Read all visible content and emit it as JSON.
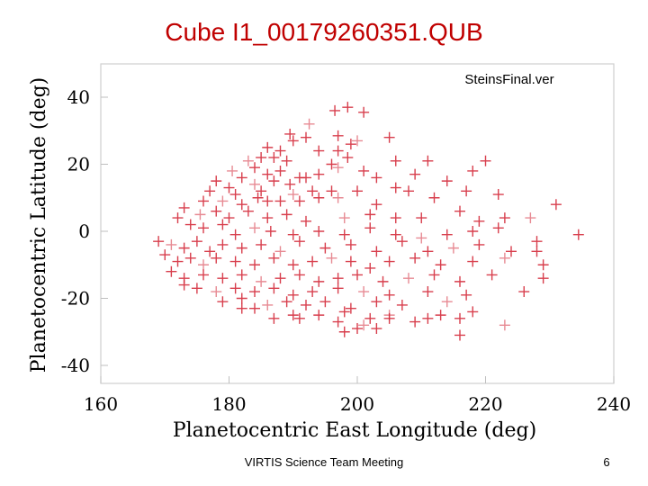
{
  "slide": {
    "title": "Cube I1_00179260351.QUB",
    "footer": "VIRTIS Science Team Meeting",
    "page_number": "6"
  },
  "chart_data": {
    "type": "scatter",
    "annotation": "SteinsFinal.ver",
    "xlabel": "Planetocentric East Longitude (deg)",
    "ylabel": "Planetocentric Latitude (deg)",
    "xlim": [
      160,
      240
    ],
    "ylim": [
      -45,
      50
    ],
    "xticks": [
      160,
      180,
      200,
      220,
      240
    ],
    "yticks": [
      -40,
      -20,
      0,
      20,
      40
    ],
    "marker": "plus",
    "color": "#d42a3a",
    "grid": false,
    "points": [
      [
        196.5,
        36
      ],
      [
        198.5,
        37
      ],
      [
        201,
        35.5
      ],
      [
        192.5,
        32
      ],
      [
        205,
        28
      ],
      [
        189.5,
        29
      ],
      [
        190,
        27
      ],
      [
        192,
        28
      ],
      [
        197,
        28.5
      ],
      [
        199,
        26
      ],
      [
        200,
        27
      ],
      [
        186,
        25
      ],
      [
        188,
        24
      ],
      [
        194,
        24
      ],
      [
        197,
        24
      ],
      [
        185,
        22
      ],
      [
        187,
        22
      ],
      [
        183,
        21
      ],
      [
        189,
        21
      ],
      [
        211,
        21
      ],
      [
        196,
        20
      ],
      [
        198.5,
        22
      ],
      [
        206,
        21
      ],
      [
        220,
        21
      ],
      [
        180.5,
        18
      ],
      [
        182,
        16
      ],
      [
        184,
        19
      ],
      [
        186,
        17
      ],
      [
        188,
        18
      ],
      [
        191,
        16
      ],
      [
        194,
        17
      ],
      [
        197,
        19
      ],
      [
        201,
        18
      ],
      [
        203,
        16
      ],
      [
        209,
        17
      ],
      [
        218,
        18
      ],
      [
        178,
        15
      ],
      [
        180,
        13
      ],
      [
        184,
        14
      ],
      [
        187,
        15
      ],
      [
        189.5,
        14
      ],
      [
        192,
        16
      ],
      [
        177,
        12
      ],
      [
        181,
        11
      ],
      [
        185,
        12
      ],
      [
        190,
        11
      ],
      [
        193,
        12
      ],
      [
        196,
        12
      ],
      [
        200,
        12
      ],
      [
        206,
        13
      ],
      [
        214,
        15
      ],
      [
        176,
        9
      ],
      [
        179,
        9
      ],
      [
        182,
        8
      ],
      [
        184.5,
        10
      ],
      [
        186,
        9
      ],
      [
        188,
        9
      ],
      [
        191,
        9
      ],
      [
        194,
        10
      ],
      [
        197,
        10
      ],
      [
        203,
        8
      ],
      [
        208,
        12
      ],
      [
        212,
        10
      ],
      [
        217,
        12
      ],
      [
        222,
        11
      ],
      [
        173,
        7
      ],
      [
        175.5,
        5
      ],
      [
        178,
        6
      ],
      [
        180,
        4
      ],
      [
        183,
        6
      ],
      [
        186,
        4
      ],
      [
        189,
        5
      ],
      [
        192,
        3
      ],
      [
        198,
        4
      ],
      [
        202,
        5
      ],
      [
        206,
        4
      ],
      [
        210,
        4
      ],
      [
        216,
        6
      ],
      [
        219,
        3
      ],
      [
        223,
        4
      ],
      [
        227,
        4
      ],
      [
        231,
        8
      ],
      [
        172,
        4
      ],
      [
        174,
        2
      ],
      [
        176,
        1
      ],
      [
        179,
        2
      ],
      [
        181,
        -1
      ],
      [
        184,
        1
      ],
      [
        186.5,
        0
      ],
      [
        190,
        -1
      ],
      [
        194,
        0
      ],
      [
        198,
        -1
      ],
      [
        202,
        1
      ],
      [
        206,
        -1
      ],
      [
        210,
        -2
      ],
      [
        214,
        -1
      ],
      [
        218,
        0
      ],
      [
        222,
        1
      ],
      [
        228,
        -3
      ],
      [
        234.5,
        -1
      ],
      [
        169,
        -3
      ],
      [
        171,
        -4
      ],
      [
        173,
        -5
      ],
      [
        175,
        -3
      ],
      [
        177,
        -6
      ],
      [
        179,
        -4
      ],
      [
        182,
        -5
      ],
      [
        185,
        -4
      ],
      [
        188,
        -6
      ],
      [
        191,
        -3
      ],
      [
        195,
        -5
      ],
      [
        199,
        -4
      ],
      [
        203,
        -6
      ],
      [
        207,
        -3
      ],
      [
        211,
        -6
      ],
      [
        215,
        -5
      ],
      [
        219,
        -4
      ],
      [
        224,
        -6
      ],
      [
        228,
        -6
      ],
      [
        170,
        -7
      ],
      [
        172,
        -9
      ],
      [
        174,
        -8
      ],
      [
        176,
        -10
      ],
      [
        178,
        -8
      ],
      [
        181,
        -9
      ],
      [
        184,
        -10
      ],
      [
        187,
        -8
      ],
      [
        190,
        -10
      ],
      [
        193,
        -9
      ],
      [
        196,
        -8
      ],
      [
        199,
        -9
      ],
      [
        202,
        -11
      ],
      [
        205,
        -9
      ],
      [
        209,
        -8
      ],
      [
        213,
        -10
      ],
      [
        218,
        -9
      ],
      [
        223,
        -8
      ],
      [
        229,
        -10
      ],
      [
        171,
        -12
      ],
      [
        173,
        -14
      ],
      [
        176,
        -13
      ],
      [
        179,
        -14
      ],
      [
        182,
        -13
      ],
      [
        185,
        -15
      ],
      [
        188,
        -14
      ],
      [
        191,
        -13
      ],
      [
        194,
        -15
      ],
      [
        197,
        -14
      ],
      [
        200,
        -13
      ],
      [
        204,
        -15
      ],
      [
        208,
        -14
      ],
      [
        212,
        -13
      ],
      [
        216,
        -15
      ],
      [
        221,
        -13
      ],
      [
        229,
        -14
      ],
      [
        173,
        -16
      ],
      [
        175,
        -17
      ],
      [
        178,
        -18
      ],
      [
        181,
        -17
      ],
      [
        184,
        -18
      ],
      [
        187,
        -17
      ],
      [
        190,
        -19
      ],
      [
        193,
        -18
      ],
      [
        197,
        -17
      ],
      [
        201,
        -18
      ],
      [
        205,
        -19
      ],
      [
        211,
        -18
      ],
      [
        217,
        -19
      ],
      [
        226,
        -18
      ],
      [
        179,
        -21
      ],
      [
        182,
        -20
      ],
      [
        186,
        -22
      ],
      [
        189,
        -21
      ],
      [
        192,
        -22
      ],
      [
        195,
        -21
      ],
      [
        199,
        -23
      ],
      [
        203,
        -21
      ],
      [
        207,
        -22
      ],
      [
        214,
        -21
      ],
      [
        182,
        -23
      ],
      [
        184,
        -23
      ],
      [
        190,
        -25
      ],
      [
        194,
        -25
      ],
      [
        198,
        -24
      ],
      [
        202,
        -26
      ],
      [
        205,
        -25
      ],
      [
        209,
        -27
      ],
      [
        213,
        -25
      ],
      [
        218,
        -24
      ],
      [
        187,
        -26
      ],
      [
        191,
        -26
      ],
      [
        197,
        -27
      ],
      [
        201,
        -28
      ],
      [
        205,
        -26
      ],
      [
        211,
        -26
      ],
      [
        216,
        -26
      ],
      [
        200,
        -29
      ],
      [
        198,
        -30
      ],
      [
        203,
        -29
      ],
      [
        223,
        -28
      ],
      [
        216,
        -31
      ]
    ]
  }
}
